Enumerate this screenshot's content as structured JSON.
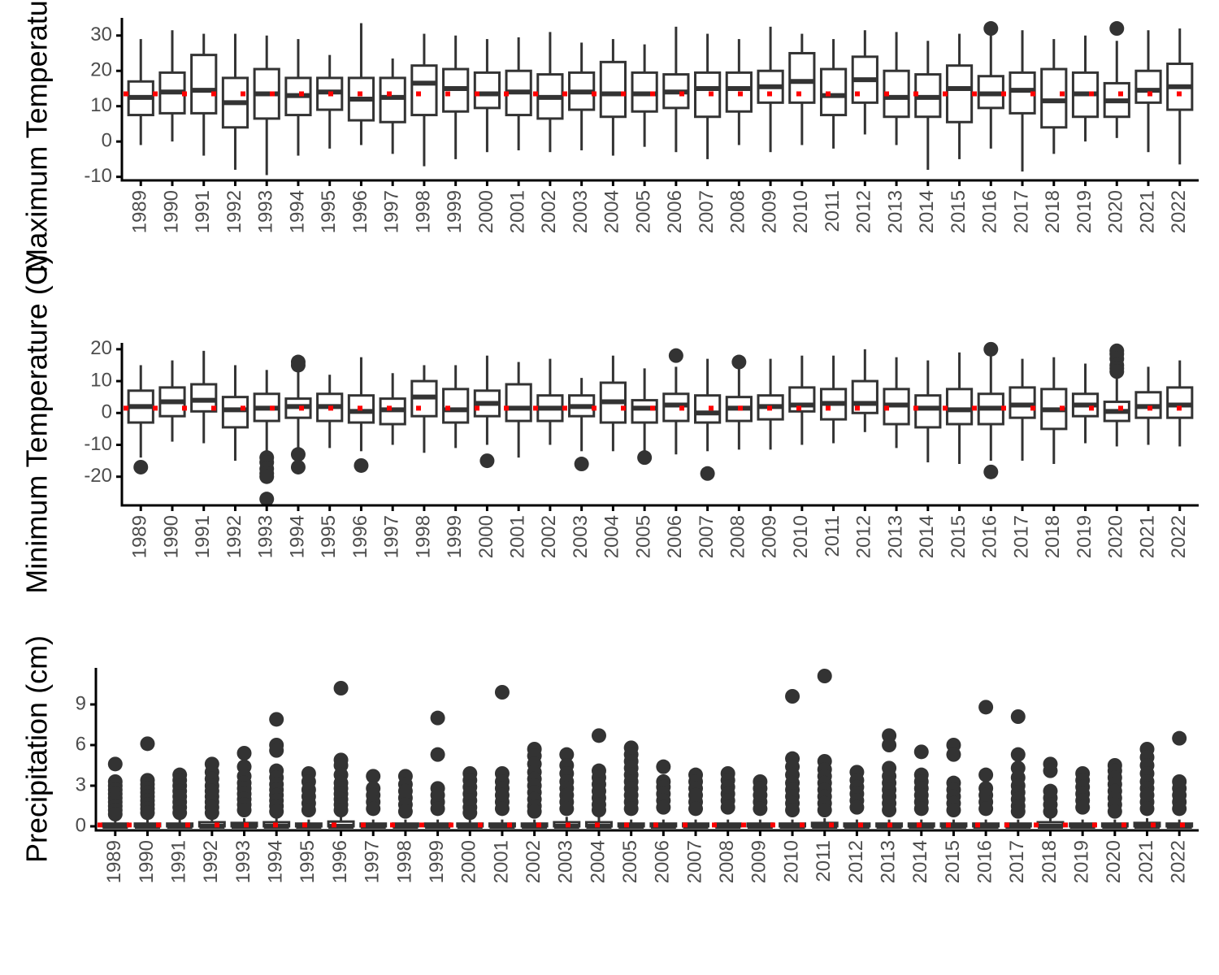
{
  "figure": {
    "colors": {
      "box": "#333333",
      "axis": "#000000",
      "mean_marker": "#ff0000",
      "tick_text": "#4d4d4d"
    }
  },
  "chart_data": [
    {
      "type": "box",
      "title": "",
      "xlabel": "",
      "ylabel": "Maximum Temperature (C)",
      "ylim": [
        -11,
        35
      ],
      "yticks": [
        -10,
        0,
        10,
        20,
        30
      ],
      "grid": false,
      "mean_line": true,
      "categories": [
        "1989",
        "1990",
        "1991",
        "1992",
        "1993",
        "1994",
        "1995",
        "1996",
        "1997",
        "1998",
        "1999",
        "2000",
        "2001",
        "2002",
        "2003",
        "2004",
        "2005",
        "2006",
        "2007",
        "2008",
        "2009",
        "2010",
        "2011",
        "2012",
        "2013",
        "2014",
        "2015",
        "2016",
        "2017",
        "2018",
        "2019",
        "2020",
        "2021",
        "2022"
      ],
      "mean": [
        13.5,
        13.5,
        13.5,
        13.5,
        13.5,
        13.5,
        13.5,
        13.5,
        13.5,
        13.5,
        13.5,
        13.5,
        13.5,
        13.5,
        13.5,
        13.5,
        13.5,
        13.5,
        13.5,
        13.5,
        13.5,
        13.5,
        13.5,
        13.5,
        13.5,
        13.5,
        13.5,
        13.5,
        13.5,
        13.5,
        13.5,
        13.5,
        13.5,
        13.5
      ],
      "whisker_low": [
        -1,
        0,
        -4,
        -8,
        -9.5,
        -4,
        -2,
        -1,
        -3.5,
        -7,
        -5,
        -3,
        -2.5,
        -3,
        -2.5,
        -4,
        -1.5,
        -3,
        -5,
        -1,
        -3,
        -1,
        -2,
        2,
        -1,
        -8,
        -5,
        -2,
        -8.5,
        -3.5,
        0,
        1,
        -3,
        -6.5
      ],
      "q1": [
        7.5,
        8,
        8,
        4,
        6.5,
        7.5,
        9,
        6,
        5.5,
        7.5,
        8.5,
        9.5,
        7.5,
        6.5,
        9,
        7,
        8.5,
        9.5,
        7,
        8.5,
        11,
        11,
        7.5,
        11,
        7,
        7,
        5.5,
        9.5,
        8,
        4,
        7,
        7,
        11,
        9
      ],
      "median": [
        12.5,
        14,
        14.5,
        11,
        13.5,
        13,
        14,
        12,
        12.5,
        16.5,
        15,
        13.5,
        14,
        12.5,
        14,
        13.5,
        13.5,
        14,
        15,
        15,
        15.5,
        17,
        13,
        17.5,
        12.5,
        12.5,
        15,
        13.5,
        14.5,
        11.5,
        13.5,
        11.5,
        14.5,
        15.5
      ],
      "q3": [
        17,
        19.5,
        24.5,
        18,
        20.5,
        18,
        18,
        18,
        18,
        21.5,
        20.5,
        19.5,
        20,
        19,
        19.5,
        22.5,
        19.5,
        19,
        19.5,
        19.5,
        20,
        25,
        20.5,
        24,
        20,
        19,
        21.5,
        18.5,
        19.5,
        20.5,
        19.5,
        16.5,
        20,
        22
      ],
      "whisker_high": [
        29,
        31.5,
        30.5,
        30.5,
        30,
        29,
        24.5,
        33.5,
        23.5,
        30.5,
        30,
        29,
        29.5,
        31,
        28,
        29,
        27.5,
        32.5,
        30.5,
        29,
        32.5,
        30.5,
        29,
        31.5,
        31,
        28.5,
        30.5,
        31,
        31.5,
        29,
        30,
        28.5,
        31.5,
        32
      ],
      "outliers": [
        [],
        [],
        [],
        [],
        [],
        [],
        [],
        [],
        [],
        [],
        [],
        [],
        [],
        [],
        [],
        [],
        [],
        [],
        [],
        [],
        [],
        [],
        [],
        [],
        [],
        [],
        [],
        [
          32
        ],
        [],
        [],
        [],
        [
          32
        ],
        [],
        []
      ]
    },
    {
      "type": "box",
      "title": "",
      "xlabel": "",
      "ylabel": "Minimum Temperature (C)",
      "ylim": [
        -29,
        22
      ],
      "yticks": [
        -20,
        -10,
        0,
        10,
        20
      ],
      "grid": false,
      "mean_line": true,
      "categories": [
        "1989",
        "1990",
        "1991",
        "1992",
        "1993",
        "1994",
        "1995",
        "1996",
        "1997",
        "1998",
        "1999",
        "2000",
        "2001",
        "2002",
        "2003",
        "2004",
        "2005",
        "2006",
        "2007",
        "2008",
        "2009",
        "2010",
        "2011",
        "2012",
        "2013",
        "2014",
        "2015",
        "2016",
        "2017",
        "2018",
        "2019",
        "2020",
        "2021",
        "2022"
      ],
      "mean": [
        1.5,
        1.5,
        1.5,
        1.5,
        1.5,
        1.5,
        1.5,
        1.5,
        1.5,
        1.5,
        1.5,
        1.5,
        1.5,
        1.5,
        1.5,
        1.5,
        1.5,
        1.5,
        1.5,
        1.5,
        1.5,
        1.5,
        1.5,
        1.5,
        1.5,
        1.5,
        1.5,
        1.5,
        1.5,
        1.5,
        1.5,
        1.5,
        1.5,
        1.5
      ],
      "whisker_low": [
        -14,
        -9,
        -9.5,
        -15,
        -13,
        -12,
        -11,
        -12,
        -10,
        -12.5,
        -11,
        -10,
        -14,
        -10,
        -12,
        -12,
        -12,
        -13,
        -12,
        -11.5,
        -11.5,
        -10,
        -9.5,
        -6,
        -11,
        -15.5,
        -16,
        -15,
        -15,
        -16,
        -9.5,
        -10.5,
        -10,
        -10.5
      ],
      "q1": [
        -3,
        -1,
        0.5,
        -4.5,
        -2.5,
        -1.5,
        -2.5,
        -3,
        -3.5,
        -1,
        -3,
        -1,
        -2.5,
        -2.5,
        -1,
        -3,
        -3,
        -2.5,
        -3,
        -2.5,
        -2,
        0.5,
        -2,
        0,
        -3.5,
        -4.5,
        -3.5,
        -3.5,
        -1.5,
        -5,
        -1,
        -2.5,
        -1.5,
        -1.5
      ],
      "median": [
        2,
        3.5,
        4,
        1,
        1.5,
        2,
        2,
        0.5,
        1,
        5,
        1,
        3,
        1.5,
        1.5,
        2,
        3.5,
        1.5,
        2.5,
        0,
        1.5,
        2,
        2.5,
        3,
        3,
        2.5,
        1.5,
        1,
        1.5,
        2.5,
        1,
        2.5,
        0.5,
        2,
        2.5
      ],
      "q3": [
        7,
        8,
        9,
        5,
        6,
        4.5,
        6,
        5.5,
        4.5,
        10,
        7.5,
        7,
        9,
        5.5,
        5.5,
        9.5,
        4,
        6,
        5.5,
        5,
        5.5,
        8,
        7.5,
        10,
        7.5,
        5.5,
        7.5,
        6,
        8,
        7.5,
        6,
        3.5,
        6.5,
        8
      ],
      "whisker_high": [
        15,
        16.5,
        19.5,
        15,
        13.5,
        14.5,
        12,
        17.5,
        12.5,
        15,
        15,
        18,
        16,
        17,
        11,
        18,
        14,
        14.5,
        17,
        17,
        17,
        18,
        18,
        20,
        17.5,
        16.5,
        19,
        19,
        17,
        17.5,
        15.5,
        17.5,
        14.5,
        16.5
      ],
      "outliers": [
        [
          -17
        ],
        [],
        [],
        [],
        [
          -14,
          -15.5,
          -17.5,
          -19,
          -20,
          -27
        ],
        [
          16,
          15,
          -13,
          -17
        ],
        [],
        [
          -16.5
        ],
        [],
        [],
        [],
        [
          -15
        ],
        [],
        [],
        [
          -16
        ],
        [],
        [
          -14
        ],
        [
          18
        ],
        [
          -19
        ],
        [
          16
        ],
        [],
        [],
        [],
        [],
        [],
        [],
        [],
        [
          20,
          -18.5
        ],
        [],
        [],
        [],
        [
          19.5,
          18.5,
          17,
          15,
          14,
          13
        ],
        [],
        []
      ]
    },
    {
      "type": "box",
      "title": "",
      "xlabel": "",
      "ylabel": "Precipitation (cm)",
      "ylim": [
        -0.3,
        11.7
      ],
      "yticks": [
        0,
        3,
        6,
        9
      ],
      "grid": false,
      "mean_line": true,
      "categories": [
        "1989",
        "1990",
        "1991",
        "1992",
        "1993",
        "1994",
        "1995",
        "1996",
        "1997",
        "1998",
        "1999",
        "2000",
        "2001",
        "2002",
        "2003",
        "2004",
        "2005",
        "2006",
        "2007",
        "2008",
        "2009",
        "2010",
        "2011",
        "2012",
        "2013",
        "2014",
        "2015",
        "2016",
        "2017",
        "2018",
        "2019",
        "2020",
        "2021",
        "2022"
      ],
      "mean": [
        0.1,
        0.1,
        0.1,
        0.1,
        0.1,
        0.1,
        0.1,
        0.1,
        0.1,
        0.1,
        0.1,
        0.1,
        0.1,
        0.1,
        0.1,
        0.1,
        0.1,
        0.1,
        0.1,
        0.1,
        0.1,
        0.1,
        0.1,
        0.1,
        0.1,
        0.1,
        0.1,
        0.1,
        0.1,
        0.1,
        0.1,
        0.1,
        0.1,
        0.1
      ],
      "whisker_low": [
        0,
        0,
        0,
        0,
        0,
        0,
        0,
        0,
        0,
        0,
        0,
        0,
        0,
        0,
        0,
        0,
        0,
        0,
        0,
        0,
        0,
        0,
        0,
        0,
        0,
        0,
        0,
        0,
        0,
        0,
        0,
        0,
        0,
        0
      ],
      "q1": [
        0,
        0,
        0,
        0,
        0,
        0,
        0,
        0,
        0,
        0,
        0,
        0,
        0,
        0,
        0,
        0,
        0,
        0,
        0,
        0,
        0,
        0,
        0,
        0,
        0,
        0,
        0,
        0,
        0,
        0,
        0,
        0,
        0,
        0
      ],
      "median": [
        0,
        0,
        0,
        0,
        0,
        0,
        0,
        0,
        0,
        0,
        0,
        0,
        0,
        0,
        0,
        0,
        0,
        0,
        0,
        0,
        0,
        0,
        0,
        0,
        0,
        0,
        0,
        0,
        0,
        0,
        0,
        0,
        0,
        0
      ],
      "q3": [
        0.2,
        0.2,
        0.2,
        0.3,
        0.25,
        0.3,
        0.2,
        0.35,
        0.2,
        0.2,
        0.2,
        0.2,
        0.2,
        0.2,
        0.3,
        0.3,
        0.2,
        0.2,
        0.2,
        0.2,
        0.2,
        0.2,
        0.25,
        0.2,
        0.2,
        0.2,
        0.2,
        0.2,
        0.2,
        0.3,
        0.2,
        0.2,
        0.25,
        0.2
      ],
      "whisker_high": [
        0.5,
        0.5,
        0.5,
        0.7,
        0.6,
        0.7,
        0.5,
        0.8,
        0.5,
        0.5,
        0.5,
        0.5,
        0.5,
        0.5,
        0.7,
        0.7,
        0.5,
        0.5,
        0.5,
        0.5,
        0.5,
        0.5,
        0.6,
        0.5,
        0.5,
        0.5,
        0.5,
        0.5,
        0.5,
        0.7,
        0.5,
        0.5,
        0.6,
        0.5
      ],
      "outliers": [
        [
          4.6,
          3.3,
          3,
          2.7,
          2.4,
          2.1,
          1.8,
          1.5,
          1.2,
          0.9
        ],
        [
          6.1,
          3.4,
          3.1,
          2.8,
          2.5,
          2.2,
          1.9,
          1.6,
          1.3,
          1
        ],
        [
          3.8,
          3.4,
          3,
          2.6,
          2.2,
          1.8,
          1.4,
          1
        ],
        [
          4.6,
          4,
          3.5,
          3,
          2.6,
          2.2,
          1.8,
          1.4,
          1
        ],
        [
          5.4,
          4.4,
          3.7,
          3.2,
          2.8,
          2.4,
          2,
          1.6,
          1.2
        ],
        [
          7.9,
          6,
          5.6,
          4.1,
          3.6,
          3.1,
          2.7,
          2.3,
          1.9,
          1.5,
          1.1
        ],
        [
          3.9,
          3.3,
          2.7,
          2.2,
          1.7,
          1.2
        ],
        [
          10.2,
          4.9,
          4.5,
          3.8,
          3.2,
          2.8,
          2.4,
          2,
          1.6,
          1.2
        ],
        [
          3.7,
          2.8,
          2.3,
          1.8,
          1.3
        ],
        [
          3.7,
          3.1,
          2.6,
          2.1,
          1.6,
          1.1
        ],
        [
          8,
          5.3,
          2.8,
          2.3,
          1.8,
          1.3
        ],
        [
          3.9,
          3.4,
          2.9,
          2.4,
          1.9,
          1.4,
          1
        ],
        [
          9.9,
          3.9,
          3.3,
          2.8,
          2.3,
          1.8,
          1.3
        ],
        [
          5.7,
          5.2,
          4.6,
          4,
          3.5,
          3,
          2.5,
          2,
          1.5,
          1.1
        ],
        [
          5.3,
          4.5,
          3.9,
          3.3,
          2.8,
          2.3,
          1.8,
          1.3
        ],
        [
          6.7,
          4.1,
          3.6,
          3.1,
          2.6,
          2.1,
          1.6,
          1.2
        ],
        [
          5.8,
          5.3,
          4.8,
          4.3,
          3.8,
          3.3,
          2.8,
          2.3,
          1.8,
          1.3
        ],
        [
          4.4,
          3.3,
          2.9,
          2.4,
          1.9,
          1.4
        ],
        [
          3.8,
          3.3,
          2.8,
          2.3,
          1.8,
          1.3
        ],
        [
          3.9,
          3.4,
          2.9,
          2.4,
          1.9,
          1.4
        ],
        [
          3.3,
          2.8,
          2.3,
          1.8,
          1.3
        ],
        [
          9.6,
          5,
          4.4,
          3.8,
          3.2,
          2.7,
          2.2,
          1.7,
          1.2
        ],
        [
          11.1,
          4.8,
          4.2,
          3.7,
          3.2,
          2.7,
          2.2,
          1.7,
          1.2
        ],
        [
          4,
          3.4,
          2.9,
          2.4,
          1.9,
          1.4
        ],
        [
          6.7,
          6,
          4.3,
          3.7,
          3.2,
          2.7,
          2.2,
          1.7,
          1.2
        ],
        [
          5.5,
          3.8,
          3.3,
          2.8,
          2.3,
          1.8,
          1.3
        ],
        [
          6,
          5.3,
          3.2,
          2.7,
          2.2,
          1.7,
          1.2
        ],
        [
          8.8,
          3.8,
          2.8,
          2.3,
          1.8,
          1.3
        ],
        [
          8.1,
          5.3,
          4.3,
          3.6,
          3,
          2.5,
          2,
          1.5,
          1.1
        ],
        [
          4.6,
          4.1,
          2.6,
          2.1,
          1.6,
          1.1
        ],
        [
          3.9,
          3.4,
          2.9,
          2.4,
          1.9,
          1.4
        ],
        [
          4.5,
          4.1,
          3.6,
          3.1,
          2.6,
          2.1,
          1.6,
          1.1
        ],
        [
          5.7,
          5.1,
          4.5,
          3.9,
          3.3,
          2.8,
          2.3,
          1.8,
          1.3
        ],
        [
          6.5,
          3.3,
          2.8,
          2.3,
          1.8,
          1.3
        ]
      ]
    }
  ]
}
